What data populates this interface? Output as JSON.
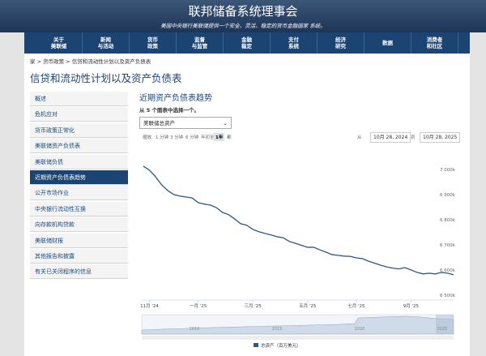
{
  "header": {
    "title": "联邦储备系统理事会",
    "subtitle": "美国中央银行美联储提供一个安全、灵活、稳定的货币金融国家 系统。"
  },
  "nav": {
    "items": [
      [
        "关于",
        "美联储"
      ],
      [
        "新闻",
        "与活动"
      ],
      [
        "货币",
        "政策"
      ],
      [
        "监督",
        "与监管"
      ],
      [
        "金融",
        "稳定"
      ],
      [
        "支付",
        "系统"
      ],
      [
        "经济",
        "研究"
      ],
      [
        "数据"
      ],
      [
        "消费者",
        "和社区"
      ]
    ]
  },
  "breadcrumb": [
    "家",
    "货币政策",
    "信贷和流动性计划以及资产负债表"
  ],
  "page_title": "信贷和流动性计划以及资产负债表",
  "sidebar": {
    "items": [
      "概述",
      "危机应对",
      "货币政策正常化",
      "美联储资产负债表",
      "美联储负债",
      "近期资产负债表趋势",
      "公开市场作业",
      "中央银行流动性互换",
      "向存款机构贷款",
      "美联储财报",
      "其他报告和披露",
      "有关已关闭程序的信息"
    ],
    "active": 5
  },
  "section": {
    "title": "近期资产负债表趋势",
    "prompt": "从 5 个图表中选择一个。",
    "dropdown": "美联储总资产"
  },
  "range": {
    "zoom": "缩放",
    "buttons": [
      "1 分钟",
      "3 分钟",
      "6 分钟",
      "年初至",
      "1年",
      "都"
    ],
    "active": 4,
    "from": "从",
    "from_date": "10月 28, 2024",
    "to": "到",
    "to_date": "10月 28, 2025"
  },
  "navigator": {
    "labels": [
      "2010",
      "2015",
      "2020",
      "2025"
    ]
  },
  "chart_data": {
    "type": "line",
    "x": [
      0,
      1,
      2,
      3,
      4,
      5,
      6,
      7,
      8,
      9,
      10,
      11,
      12,
      13,
      14,
      15,
      16,
      17,
      18,
      19,
      20,
      21,
      22,
      23,
      24,
      25,
      26,
      27,
      28,
      29,
      30,
      31,
      32,
      33,
      34,
      35,
      36,
      37,
      38,
      39,
      40,
      41,
      42,
      43,
      44,
      45,
      46,
      47,
      48,
      49,
      50,
      51
    ],
    "series": [
      {
        "name": "总资产（百万美元）",
        "color": "#2d5784",
        "values": [
          7013000,
          6997000,
          6971000,
          6939000,
          6916000,
          6900000,
          6894000,
          6890000,
          6887000,
          6868000,
          6862000,
          6858000,
          6848000,
          6829000,
          6820000,
          6803000,
          6784000,
          6778000,
          6761000,
          6752000,
          6745000,
          6739000,
          6732000,
          6728000,
          6713000,
          6706000,
          6698000,
          6690000,
          6690000,
          6680000,
          6671000,
          6661000,
          6658000,
          6655000,
          6654000,
          6648000,
          6645000,
          6635000,
          6627000,
          6619000,
          6612000,
          6607000,
          6604000,
          6609000,
          6600000,
          6590000,
          6584000,
          6587000,
          6584000,
          6590000,
          6587000,
          6581000
        ]
      }
    ],
    "xlim": [
      0,
      51
    ],
    "xticks": [
      {
        "value": 1,
        "label": "11月 '24"
      },
      {
        "value": 9,
        "label": "一月 '25"
      },
      {
        "value": 18,
        "label": "三月 '25"
      },
      {
        "value": 27,
        "label": "五月 '25"
      },
      {
        "value": 35,
        "label": "七月 '25"
      },
      {
        "value": 44,
        "label": "9月 '25"
      }
    ],
    "ylim": [
      6480000,
      7045000
    ],
    "yticks": [
      {
        "value": 6500000,
        "label": "6 500k"
      },
      {
        "value": 6600000,
        "label": "6 600k"
      },
      {
        "value": 6700000,
        "label": "6 700k"
      },
      {
        "value": 6800000,
        "label": "6 800k"
      },
      {
        "value": 6900000,
        "label": "6 900k"
      },
      {
        "value": 7000000,
        "label": "7 000k"
      }
    ],
    "grid": false
  }
}
